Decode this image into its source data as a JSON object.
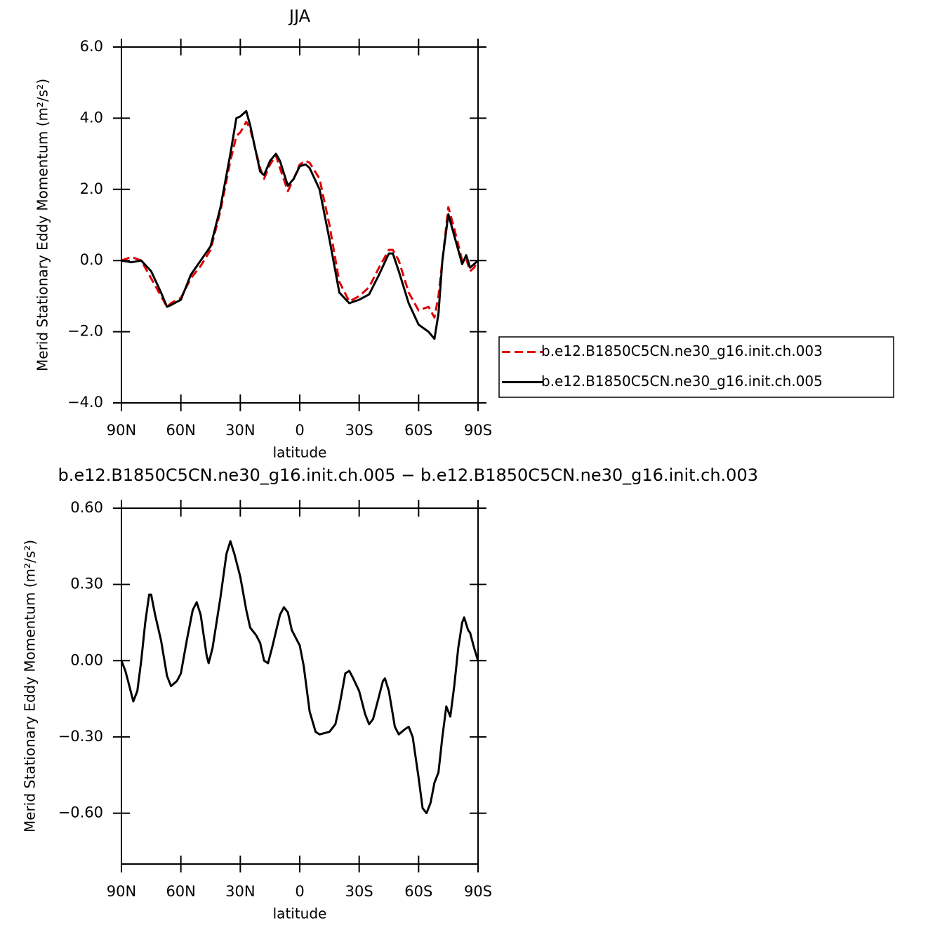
{
  "chart_data": [
    {
      "type": "line",
      "title": "JJA",
      "x_label": "latitude",
      "y_label": "Merid Stationary Eddy Momentum (m²/s²)",
      "xlim": [
        90,
        -90
      ],
      "xticks": [
        {
          "value": 90,
          "label": "90N"
        },
        {
          "value": 60,
          "label": "60N"
        },
        {
          "value": 30,
          "label": "30N"
        },
        0,
        {
          "value": -30,
          "label": "30S"
        },
        {
          "value": -60,
          "label": "60S"
        },
        {
          "value": -90,
          "label": "90S"
        }
      ],
      "ylim": [
        -4,
        6
      ],
      "yticks": [
        {
          "value": 6,
          "label": "6.0"
        },
        {
          "value": 4,
          "label": "4.0"
        },
        {
          "value": 2,
          "label": "2.0"
        },
        {
          "value": 0,
          "label": "0.0"
        },
        {
          "value": -2,
          "label": "−2.0"
        },
        {
          "value": -4,
          "label": "−4.0"
        }
      ],
      "legend": "right",
      "x": [
        90,
        85,
        80,
        75,
        70,
        67,
        65,
        60,
        55,
        50,
        45,
        40,
        35,
        32,
        30,
        27,
        25,
        20,
        18,
        15,
        12,
        10,
        6,
        3,
        0,
        -3,
        -5,
        -10,
        -15,
        -20,
        -25,
        -30,
        -35,
        -40,
        -45,
        -47,
        -50,
        -55,
        -60,
        -65,
        -68,
        -70,
        -72,
        -75,
        -78,
        -82,
        -84,
        -86,
        -88,
        -90
      ],
      "series": [
        {
          "name": "b.e12.B1850C5CN.ne30_g16.init.ch.003",
          "color": "#e00000",
          "dash": true,
          "values": [
            0,
            0.1,
            0,
            -0.5,
            -1.0,
            -1.3,
            -1.2,
            -1.05,
            -0.5,
            -0.15,
            0.3,
            1.4,
            2.8,
            3.5,
            3.6,
            3.9,
            3.7,
            2.6,
            2.3,
            2.7,
            2.95,
            2.6,
            1.95,
            2.3,
            2.7,
            2.8,
            2.75,
            2.3,
            1.0,
            -0.6,
            -1.15,
            -1.0,
            -0.75,
            -0.2,
            0.3,
            0.3,
            0.0,
            -0.9,
            -1.4,
            -1.3,
            -1.6,
            -1.0,
            0.0,
            1.5,
            0.9,
            0.0,
            0.05,
            -0.3,
            -0.2,
            0.0
          ]
        },
        {
          "name": "b.e12.B1850C5CN.ne30_g16.init.ch.005",
          "color": "#000000",
          "dash": false,
          "values": [
            0,
            -0.05,
            0,
            -0.3,
            -0.9,
            -1.3,
            -1.25,
            -1.1,
            -0.4,
            0,
            0.4,
            1.5,
            3.0,
            4.0,
            4.05,
            4.2,
            3.8,
            2.5,
            2.4,
            2.8,
            3.0,
            2.8,
            2.1,
            2.3,
            2.65,
            2.7,
            2.6,
            2.0,
            0.6,
            -0.9,
            -1.2,
            -1.1,
            -0.95,
            -0.4,
            0.2,
            0.2,
            -0.3,
            -1.2,
            -1.8,
            -2.0,
            -2.2,
            -1.5,
            0.0,
            1.3,
            0.7,
            -0.1,
            0.15,
            -0.2,
            -0.1,
            0.0
          ]
        }
      ]
    },
    {
      "type": "line",
      "title": "b.e12.B1850C5CN.ne30_g16.init.ch.005 − b.e12.B1850C5CN.ne30_g16.init.ch.003",
      "x_label": "latitude",
      "y_label": "Merid Stationary Eddy Momentum (m²/s²)",
      "xlim": [
        90,
        -90
      ],
      "xticks": [
        {
          "value": 90,
          "label": "90N"
        },
        {
          "value": 60,
          "label": "60N"
        },
        {
          "value": 30,
          "label": "30N"
        },
        0,
        {
          "value": -30,
          "label": "30S"
        },
        {
          "value": -60,
          "label": "60S"
        },
        {
          "value": -90,
          "label": "90S"
        }
      ],
      "ylim": [
        -0.8,
        0.6
      ],
      "yticks": [
        {
          "value": 0.6,
          "label": "0.60"
        },
        {
          "value": 0.3,
          "label": "0.30"
        },
        {
          "value": 0,
          "label": "0.00"
        },
        {
          "value": -0.3,
          "label": "−0.30"
        },
        {
          "value": -0.6,
          "label": "−0.60"
        }
      ],
      "x": [
        90,
        88,
        86,
        84,
        82,
        80,
        78,
        76,
        75,
        73,
        70,
        67,
        65,
        62,
        60,
        57,
        54,
        52,
        50,
        47,
        46,
        44,
        40,
        37,
        35,
        33,
        30,
        27,
        25,
        22,
        20,
        18,
        16,
        14,
        10,
        8,
        6,
        4,
        0,
        -2,
        -5,
        -8,
        -10,
        -15,
        -18,
        -20,
        -23,
        -25,
        -27,
        -30,
        -33,
        -35,
        -37,
        -40,
        -42,
        -43,
        -45,
        -48,
        -50,
        -53,
        -55,
        -57,
        -60,
        -62,
        -64,
        -66,
        -68,
        -70,
        -72,
        -74,
        -75,
        -76,
        -78,
        -80,
        -82,
        -83,
        -85,
        -86,
        -88,
        -90
      ],
      "series": [
        {
          "color": "#000000",
          "dash": false,
          "values": [
            0,
            -0.04,
            -0.1,
            -0.16,
            -0.12,
            0,
            0.15,
            0.26,
            0.26,
            0.18,
            0.08,
            -0.06,
            -0.1,
            -0.08,
            -0.05,
            0.08,
            0.2,
            0.23,
            0.18,
            0.02,
            -0.01,
            0.05,
            0.25,
            0.42,
            0.47,
            0.42,
            0.33,
            0.2,
            0.13,
            0.1,
            0.07,
            0,
            -0.01,
            0.05,
            0.18,
            0.21,
            0.19,
            0.12,
            0.06,
            -0.02,
            -0.2,
            -0.28,
            -0.29,
            -0.28,
            -0.25,
            -0.18,
            -0.05,
            -0.04,
            -0.07,
            -0.12,
            -0.21,
            -0.25,
            -0.23,
            -0.14,
            -0.08,
            -0.07,
            -0.12,
            -0.26,
            -0.29,
            -0.27,
            -0.26,
            -0.3,
            -0.46,
            -0.58,
            -0.6,
            -0.56,
            -0.48,
            -0.44,
            -0.3,
            -0.18,
            -0.2,
            -0.22,
            -0.1,
            0.05,
            0.15,
            0.17,
            0.12,
            0.11,
            0.05,
            0
          ]
        }
      ]
    }
  ]
}
